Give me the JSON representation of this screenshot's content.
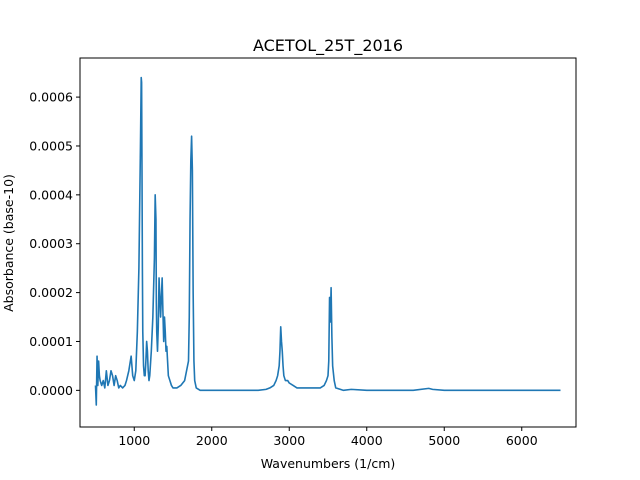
{
  "chart_data": {
    "type": "line",
    "title": "ACETOL_25T_2016",
    "xlabel": "Wavenumbers (1/cm)",
    "ylabel": "Absorbance (base-10)",
    "xlim": [
      300,
      6700
    ],
    "ylim": [
      -7.5e-05,
      0.00068
    ],
    "xticks": [
      1000,
      2000,
      3000,
      4000,
      5000,
      6000
    ],
    "xtick_labels": [
      "1000",
      "2000",
      "3000",
      "4000",
      "5000",
      "6000"
    ],
    "yticks": [
      0,
      0.0001,
      0.0002,
      0.0003,
      0.0004,
      0.0005,
      0.0006
    ],
    "ytick_labels": [
      "0.0000",
      "0.0001",
      "0.0002",
      "0.0003",
      "0.0004",
      "0.0005",
      "0.0006"
    ],
    "grid": false,
    "series": [
      {
        "color": "#1f77b4",
        "x": [
          500,
          510,
          520,
          530,
          540,
          550,
          560,
          580,
          600,
          620,
          640,
          660,
          680,
          700,
          720,
          740,
          760,
          780,
          800,
          820,
          850,
          880,
          900,
          930,
          960,
          980,
          1000,
          1020,
          1040,
          1060,
          1080,
          1090,
          1095,
          1100,
          1105,
          1110,
          1120,
          1130,
          1140,
          1150,
          1160,
          1170,
          1180,
          1190,
          1200,
          1220,
          1240,
          1260,
          1270,
          1280,
          1285,
          1290,
          1300,
          1310,
          1320,
          1340,
          1360,
          1370,
          1380,
          1390,
          1400,
          1410,
          1420,
          1430,
          1440,
          1460,
          1480,
          1500,
          1550,
          1600,
          1650,
          1700,
          1710,
          1720,
          1730,
          1740,
          1750,
          1760,
          1770,
          1780,
          1800,
          1850,
          1900,
          2000,
          2200,
          2400,
          2600,
          2700,
          2750,
          2800,
          2830,
          2850,
          2870,
          2880,
          2890,
          2900,
          2910,
          2920,
          2930,
          2950,
          2980,
          3000,
          3050,
          3100,
          3200,
          3300,
          3400,
          3450,
          3480,
          3500,
          3510,
          3520,
          3530,
          3540,
          3550,
          3560,
          3580,
          3600,
          3700,
          3800,
          4000,
          4200,
          4400,
          4600,
          4800,
          4850,
          5000,
          5200,
          5400,
          5600,
          5800,
          6000,
          6200,
          6400,
          6500
        ],
        "y": [
          1e-05,
          -3e-05,
          7e-05,
          1e-05,
          6e-05,
          3e-05,
          2e-05,
          1e-05,
          2e-05,
          5e-06,
          4e-05,
          1e-05,
          2e-05,
          4e-05,
          3e-05,
          1e-05,
          3e-05,
          2e-05,
          5e-06,
          1e-05,
          5e-06,
          1e-05,
          2e-05,
          4e-05,
          7e-05,
          3e-05,
          2e-05,
          4e-05,
          0.00012,
          0.00025,
          0.0005,
          0.00064,
          0.00063,
          0.00045,
          0.00025,
          0.00012,
          5e-05,
          3e-05,
          3e-05,
          6e-05,
          0.0001,
          8e-05,
          4e-05,
          2e-05,
          3e-05,
          8e-05,
          0.00015,
          0.00027,
          0.0004,
          0.00035,
          0.00018,
          0.00012,
          8e-05,
          0.00013,
          0.00023,
          0.00015,
          0.00023,
          0.00016,
          0.0001,
          0.00015,
          0.00012,
          8e-05,
          9e-05,
          6e-05,
          3e-05,
          2e-05,
          1e-05,
          5e-06,
          5e-06,
          1e-05,
          2e-05,
          6e-05,
          0.00015,
          0.00035,
          0.00047,
          0.00052,
          0.00045,
          0.0002,
          6e-05,
          2e-05,
          5e-06,
          0,
          0,
          0,
          0,
          0,
          0,
          2e-06,
          5e-06,
          1e-05,
          2e-05,
          3e-05,
          5e-05,
          8e-05,
          0.00013,
          0.0001,
          8e-05,
          5e-05,
          3e-05,
          2e-05,
          2e-05,
          1.5e-05,
          1e-05,
          5e-06,
          5e-06,
          5e-06,
          5e-06,
          1e-05,
          2e-05,
          3e-05,
          6e-05,
          0.00019,
          0.00014,
          0.00021,
          0.00011,
          5e-05,
          2e-05,
          5e-06,
          0,
          2e-06,
          0,
          0,
          0,
          0,
          4e-06,
          2e-06,
          0,
          0,
          0,
          0,
          0,
          0,
          0,
          0,
          0
        ]
      }
    ]
  }
}
